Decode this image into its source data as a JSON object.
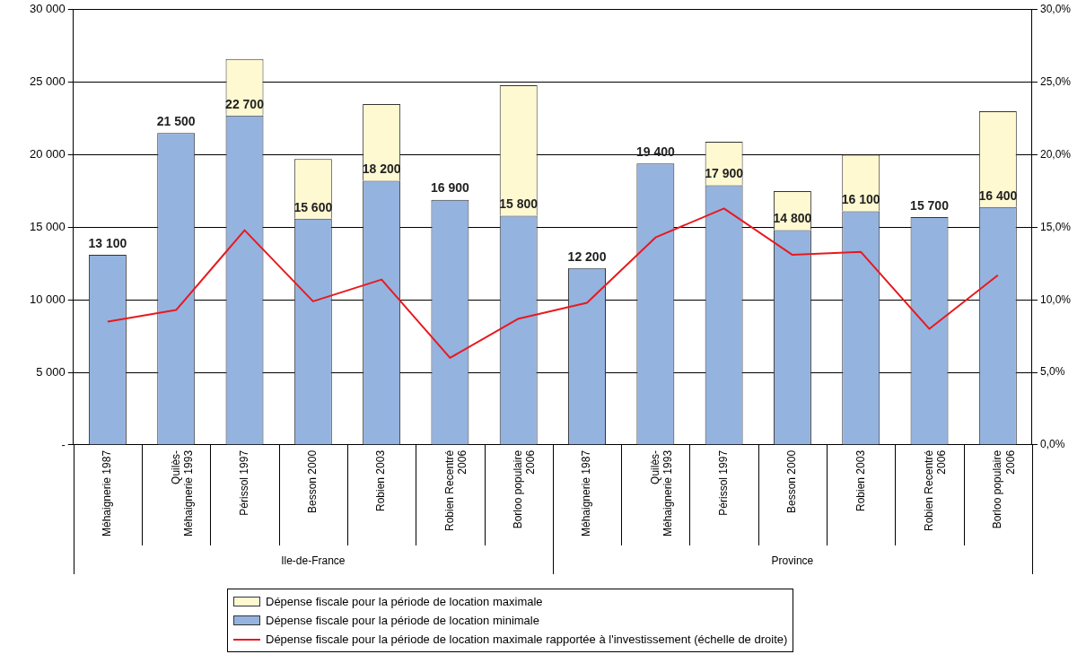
{
  "chart_data": {
    "type": "bar",
    "stacked": true,
    "grid": "y",
    "legend": "bottom",
    "categories": [
      "Méhaignerie 1987",
      "Quilès-Méhaignerie 1993",
      "Périssol 1997",
      "Besson 2000",
      "Robien 2003",
      "Robien Recentré 2006",
      "Borloo populaire 2006",
      "Méhaignerie 1987",
      "Quilès-Méhaignerie 1993",
      "Périssol 1997",
      "Besson 2000",
      "Robien 2003",
      "Robien Recentré 2006",
      "Borloo populaire 2006"
    ],
    "annotations": [
      "Ile-de-France",
      "Province"
    ],
    "ylim": [
      0,
      30000
    ],
    "yticks": [
      {
        "value": 0,
        "label": "-"
      },
      {
        "value": 5000,
        "label": "5 000"
      },
      {
        "value": 10000,
        "label": "10 000"
      },
      {
        "value": 15000,
        "label": "15 000"
      },
      {
        "value": 20000,
        "label": "20 000"
      },
      {
        "value": 25000,
        "label": "25 000"
      },
      {
        "value": 30000,
        "label": "30 000"
      }
    ],
    "y2lim": [
      0,
      30
    ],
    "y2ticks": [
      {
        "value": 0,
        "label": "0,0%"
      },
      {
        "value": 5,
        "label": "5,0%"
      },
      {
        "value": 10,
        "label": "10,0%"
      },
      {
        "value": 15,
        "label": "15,0%"
      },
      {
        "value": 20,
        "label": "20,0%"
      },
      {
        "value": 25,
        "label": "25,0%"
      },
      {
        "value": 30,
        "label": "30,0%"
      }
    ],
    "series": [
      {
        "name": "Dépense fiscale pour la période de location minimale",
        "color": "#95b3df",
        "values": [
          13100,
          21500,
          22700,
          15600,
          18200,
          16900,
          15800,
          12200,
          19400,
          17900,
          14800,
          16100,
          15700,
          16400
        ],
        "value_labels": [
          "13 100",
          "21 500",
          "22 700",
          "15 600",
          "18 200",
          "16 900",
          "15 800",
          "12 200",
          "19 400",
          "17 900",
          "14 800",
          "16 100",
          "15 700",
          "16 400"
        ]
      },
      {
        "name": "Dépense fiscale pour la période de location maximale",
        "color": "#fff9d2",
        "values": [
          null,
          null,
          3900,
          4100,
          5300,
          null,
          9000,
          null,
          null,
          3000,
          2700,
          3900,
          null,
          6600
        ]
      },
      {
        "name": "Dépense fiscale pour la période de location maximale rapportée à l'investissement (échelle de droite)",
        "type": "line",
        "axis": "y2",
        "color": "#e8191f",
        "values": [
          8.5,
          9.3,
          14.8,
          9.9,
          11.4,
          6.0,
          8.7,
          9.8,
          14.3,
          16.3,
          13.1,
          13.3,
          8.0,
          11.7
        ]
      }
    ]
  }
}
